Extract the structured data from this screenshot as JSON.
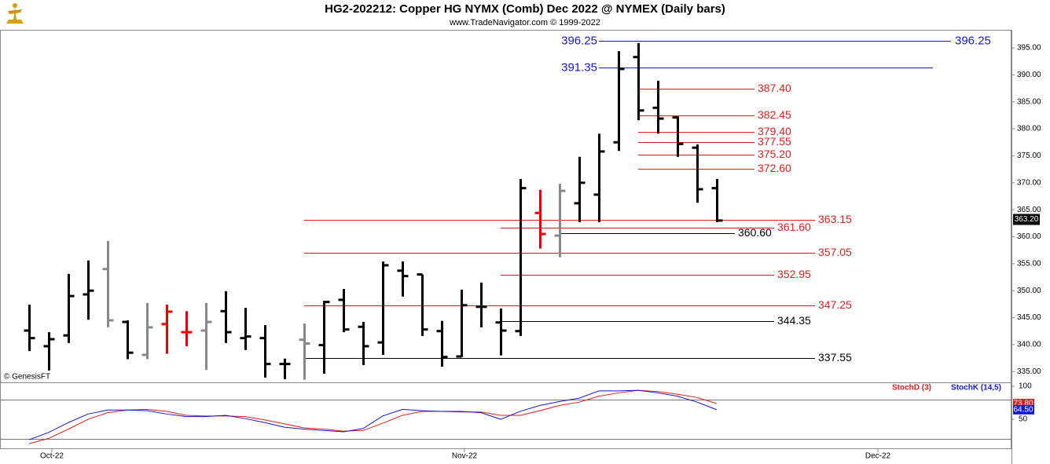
{
  "chart_data": [
    {
      "type": "ohlc",
      "title": "HG2-202212:  Copper HG NYMX (Comb) Dec 2022 @ NYMEX  (Daily bars)",
      "subtitle": "www.TradeNavigator.com © 1999-2022",
      "source": "© GenesisFT",
      "open": [
        342.6,
        339.7,
        341.7,
        349.3,
        354.0,
        344.2,
        338.1,
        343.8,
        342.3,
        342.6,
        346.2,
        341.2,
        341.2,
        336.4,
        340.9,
        339.9,
        348.3,
        343.3,
        340.4,
        353.7,
        353.0,
        342.5,
        337.8,
        347.0,
        344.1,
        342.5,
        364.4,
        360.2,
        366.2,
        367.8,
        377.5,
        393.3,
        383.9,
        382.1,
        376.5,
        369.0
      ],
      "high": [
        347.4,
        342.3,
        353.1,
        355.6,
        359.2,
        344.5,
        347.7,
        347.4,
        346.2,
        347.7,
        349.9,
        346.8,
        343.6,
        337.4,
        343.9,
        348.1,
        350.3,
        344.2,
        355.4,
        355.4,
        353.0,
        344.4,
        350.2,
        351.5,
        346.7,
        370.7,
        368.7,
        369.8,
        374.8,
        379.1,
        394.4,
        395.9,
        388.9,
        382.3,
        377.1,
        370.7
      ],
      "low": [
        338.8,
        335.2,
        340.3,
        344.6,
        343.2,
        337.3,
        337.3,
        338.3,
        339.7,
        335.3,
        340.3,
        339.0,
        333.9,
        333.6,
        333.5,
        334.6,
        342.3,
        336.2,
        338.1,
        348.9,
        341.6,
        335.9,
        337.7,
        343.2,
        338.0,
        341.6,
        357.8,
        356.2,
        362.7,
        362.7,
        375.9,
        381.6,
        379.1,
        374.8,
        366.3,
        362.7
      ],
      "close": [
        341.2,
        341.0,
        349.0,
        350.0,
        344.5,
        338.5,
        343.2,
        346.1,
        342.3,
        344.2,
        342.3,
        341.5,
        336.4,
        336.4,
        340.2,
        347.9,
        342.8,
        339.7,
        354.7,
        352.7,
        342.8,
        337.7,
        347.3,
        347.0,
        342.6,
        369.0,
        360.5,
        368.5,
        370.0,
        375.8,
        391.1,
        383.4,
        381.9,
        377.2,
        368.8,
        363.0
      ],
      "colors": [
        "#000",
        "#000",
        "#000",
        "#000",
        "#888",
        "#000",
        "#888",
        "#e00",
        "#e00",
        "#888",
        "#000",
        "#000",
        "#000",
        "#000",
        "#888",
        "#000",
        "#000",
        "#000",
        "#000",
        "#000",
        "#000",
        "#000",
        "#000",
        "#000",
        "#000",
        "#000",
        "#e00",
        "#888",
        "#000",
        "#000",
        "#000",
        "#000",
        "#000",
        "#000",
        "#000",
        "#000"
      ],
      "last_price": {
        "value": 363.2,
        "label": "363.20"
      },
      "levels": [
        {
          "value": 396.25,
          "label": "396.25",
          "color": "#1515d6"
        },
        {
          "value": 391.35,
          "label": "391.35",
          "color": "#1515d6"
        },
        {
          "value": 387.4,
          "label": "387.40",
          "color": "#e41a1a"
        },
        {
          "value": 382.45,
          "label": "382.45",
          "color": "#e41a1a"
        },
        {
          "value": 379.4,
          "label": "379.40",
          "color": "#e41a1a"
        },
        {
          "value": 377.55,
          "label": "377.55",
          "color": "#e41a1a"
        },
        {
          "value": 375.2,
          "label": "375.20",
          "color": "#e41a1a"
        },
        {
          "value": 372.6,
          "label": "372.60",
          "color": "#e41a1a"
        },
        {
          "value": 363.15,
          "label": "363.15",
          "color": "#e41a1a"
        },
        {
          "value": 361.6,
          "label": "361.60",
          "color": "#e41a1a"
        },
        {
          "value": 360.6,
          "label": "360.60",
          "color": "#000000"
        },
        {
          "value": 357.05,
          "label": "357.05",
          "color": "#e41a1a"
        },
        {
          "value": 352.95,
          "label": "352.95",
          "color": "#e41a1a"
        },
        {
          "value": 347.25,
          "label": "347.25",
          "color": "#e41a1a"
        },
        {
          "value": 344.35,
          "label": "344.35",
          "color": "#000000"
        },
        {
          "value": 337.55,
          "label": "337.55",
          "color": "#000000"
        }
      ],
      "xlim": [
        -1.48,
        50
      ],
      "xticks": [
        {
          "value": 1.16,
          "label": "Oct-22"
        },
        {
          "value": 22.16,
          "label": "Nov-22"
        },
        {
          "value": 43.2,
          "label": "Dec-22"
        }
      ],
      "ylim": [
        333.0,
        398.35
      ],
      "yticks": [
        {
          "value": 335,
          "label": "335.00"
        },
        {
          "value": 340,
          "label": "340.00"
        },
        {
          "value": 345,
          "label": "345.00"
        },
        {
          "value": 350,
          "label": "350.00"
        },
        {
          "value": 355,
          "label": "355.00"
        },
        {
          "value": 360,
          "label": "360.00"
        },
        {
          "value": 365,
          "label": "365.00"
        },
        {
          "value": 370,
          "label": "370.00"
        },
        {
          "value": 375,
          "label": "375.00"
        },
        {
          "value": 380,
          "label": "380.00"
        },
        {
          "value": 385,
          "label": "385.00"
        },
        {
          "value": 390,
          "label": "390.00"
        },
        {
          "value": 395,
          "label": "395.00"
        }
      ]
    },
    {
      "type": "line",
      "series": [
        {
          "name": "StochD (3)",
          "color": "#e41a1a",
          "values": [
            13,
            21,
            35,
            50,
            60,
            64,
            65,
            62,
            56,
            55,
            55,
            54,
            49,
            43,
            37,
            35,
            32,
            33,
            44,
            56,
            62,
            62,
            61,
            61,
            56,
            56,
            63,
            71,
            76,
            85,
            90,
            94,
            92,
            88,
            83,
            73.8
          ],
          "last_label": "73.80"
        },
        {
          "name": "StochK (14,5)",
          "color": "#1515d6",
          "values": [
            19,
            30,
            45,
            58,
            64,
            64,
            63,
            58,
            54,
            54,
            56,
            51,
            45,
            38,
            35,
            33,
            31,
            36,
            55,
            65,
            63,
            62,
            62,
            60,
            50,
            62,
            71,
            77,
            82,
            93,
            93,
            94,
            90,
            85,
            76,
            64.5
          ],
          "last_label": "64.50"
        }
      ],
      "xlim": [
        -1.48,
        50
      ],
      "ylim": [
        4.8,
        104.8
      ],
      "yticks": [
        100,
        50
      ],
      "ref_lines": [
        80,
        20
      ]
    }
  ]
}
